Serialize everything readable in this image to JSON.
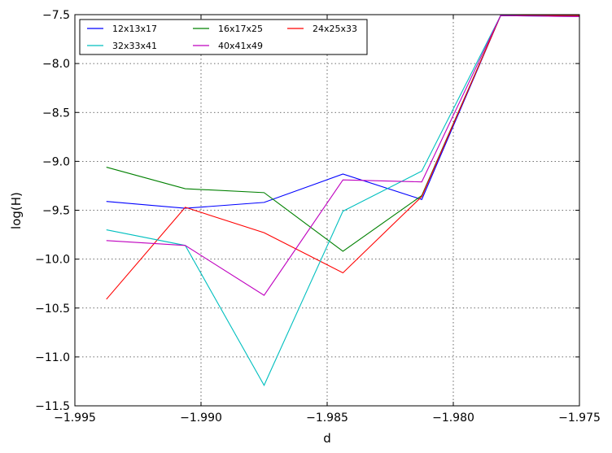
{
  "chart_data": {
    "type": "line",
    "xlabel": "d",
    "ylabel": "log(H)",
    "xlim": [
      -1.995,
      -1.975
    ],
    "ylim": [
      -11.5,
      -7.5
    ],
    "xticks": [
      -1.995,
      -1.99,
      -1.985,
      -1.98,
      -1.975
    ],
    "xtick_labels": [
      "−1.995",
      "−1.990",
      "−1.985",
      "−1.980",
      "−1.975"
    ],
    "yticks": [
      -11.5,
      -11.0,
      -10.5,
      -10.0,
      -9.5,
      -9.0,
      -8.5,
      -8.0,
      -7.5
    ],
    "ytick_labels": [
      "−11.5",
      "−11.0",
      "−10.5",
      "−10.0",
      "−9.5",
      "−9.0",
      "−8.5",
      "−8.0",
      "−7.5"
    ],
    "grid": true,
    "legend_position": "top-left",
    "legend_columns": 3,
    "x": [
      -1.99375,
      -1.990625,
      -1.9875,
      -1.984375,
      -1.98125,
      -1.978125,
      -1.975
    ],
    "series": [
      {
        "name": "12x13x17",
        "color": "#0000ff",
        "values": [
          -9.41,
          -9.48,
          -9.42,
          -9.13,
          -9.39,
          -7.51,
          -7.51
        ]
      },
      {
        "name": "16x17x25",
        "color": "#008000",
        "values": [
          -9.06,
          -9.28,
          -9.32,
          -9.92,
          -9.35,
          -7.51,
          -7.51
        ]
      },
      {
        "name": "24x25x33",
        "color": "#ff0000",
        "values": [
          -10.41,
          -9.47,
          -9.73,
          -10.14,
          -9.36,
          -7.51,
          -7.51
        ]
      },
      {
        "name": "32x33x41",
        "color": "#00bfbf",
        "values": [
          -9.7,
          -9.86,
          -11.29,
          -9.51,
          -9.1,
          -7.51,
          -7.52
        ]
      },
      {
        "name": "40x41x49",
        "color": "#bf00bf",
        "values": [
          -9.81,
          -9.86,
          -10.37,
          -9.19,
          -9.21,
          -7.51,
          -7.52
        ]
      }
    ]
  }
}
